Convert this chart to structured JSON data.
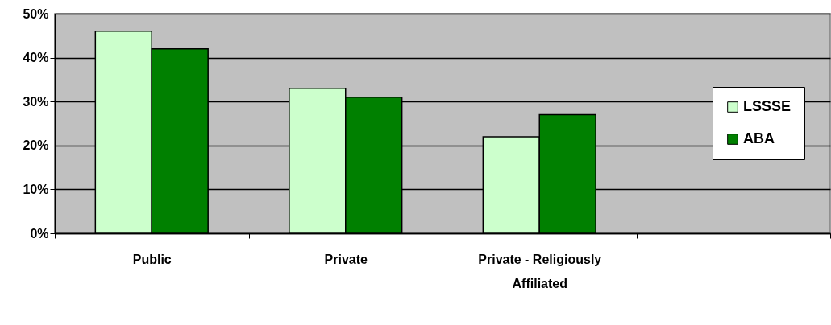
{
  "chart_data": {
    "type": "bar",
    "categories": [
      "Public",
      "Private",
      "Private - Religiously Affiliated",
      null
    ],
    "series": [
      {
        "name": "LSSSE",
        "color": "#ccffcc",
        "values": [
          46,
          33,
          22,
          null
        ]
      },
      {
        "name": "ABA",
        "color": "#008000",
        "values": [
          42,
          31,
          27,
          null
        ]
      }
    ],
    "ylim": [
      0,
      50
    ],
    "yticks": [
      {
        "value": 0,
        "label": "0%"
      },
      {
        "value": 10,
        "label": "10%"
      },
      {
        "value": 20,
        "label": "20%"
      },
      {
        "value": 30,
        "label": "30%"
      },
      {
        "value": 40,
        "label": "40%"
      },
      {
        "value": 50,
        "label": "50%"
      }
    ],
    "grid": "y",
    "legend": "right"
  }
}
